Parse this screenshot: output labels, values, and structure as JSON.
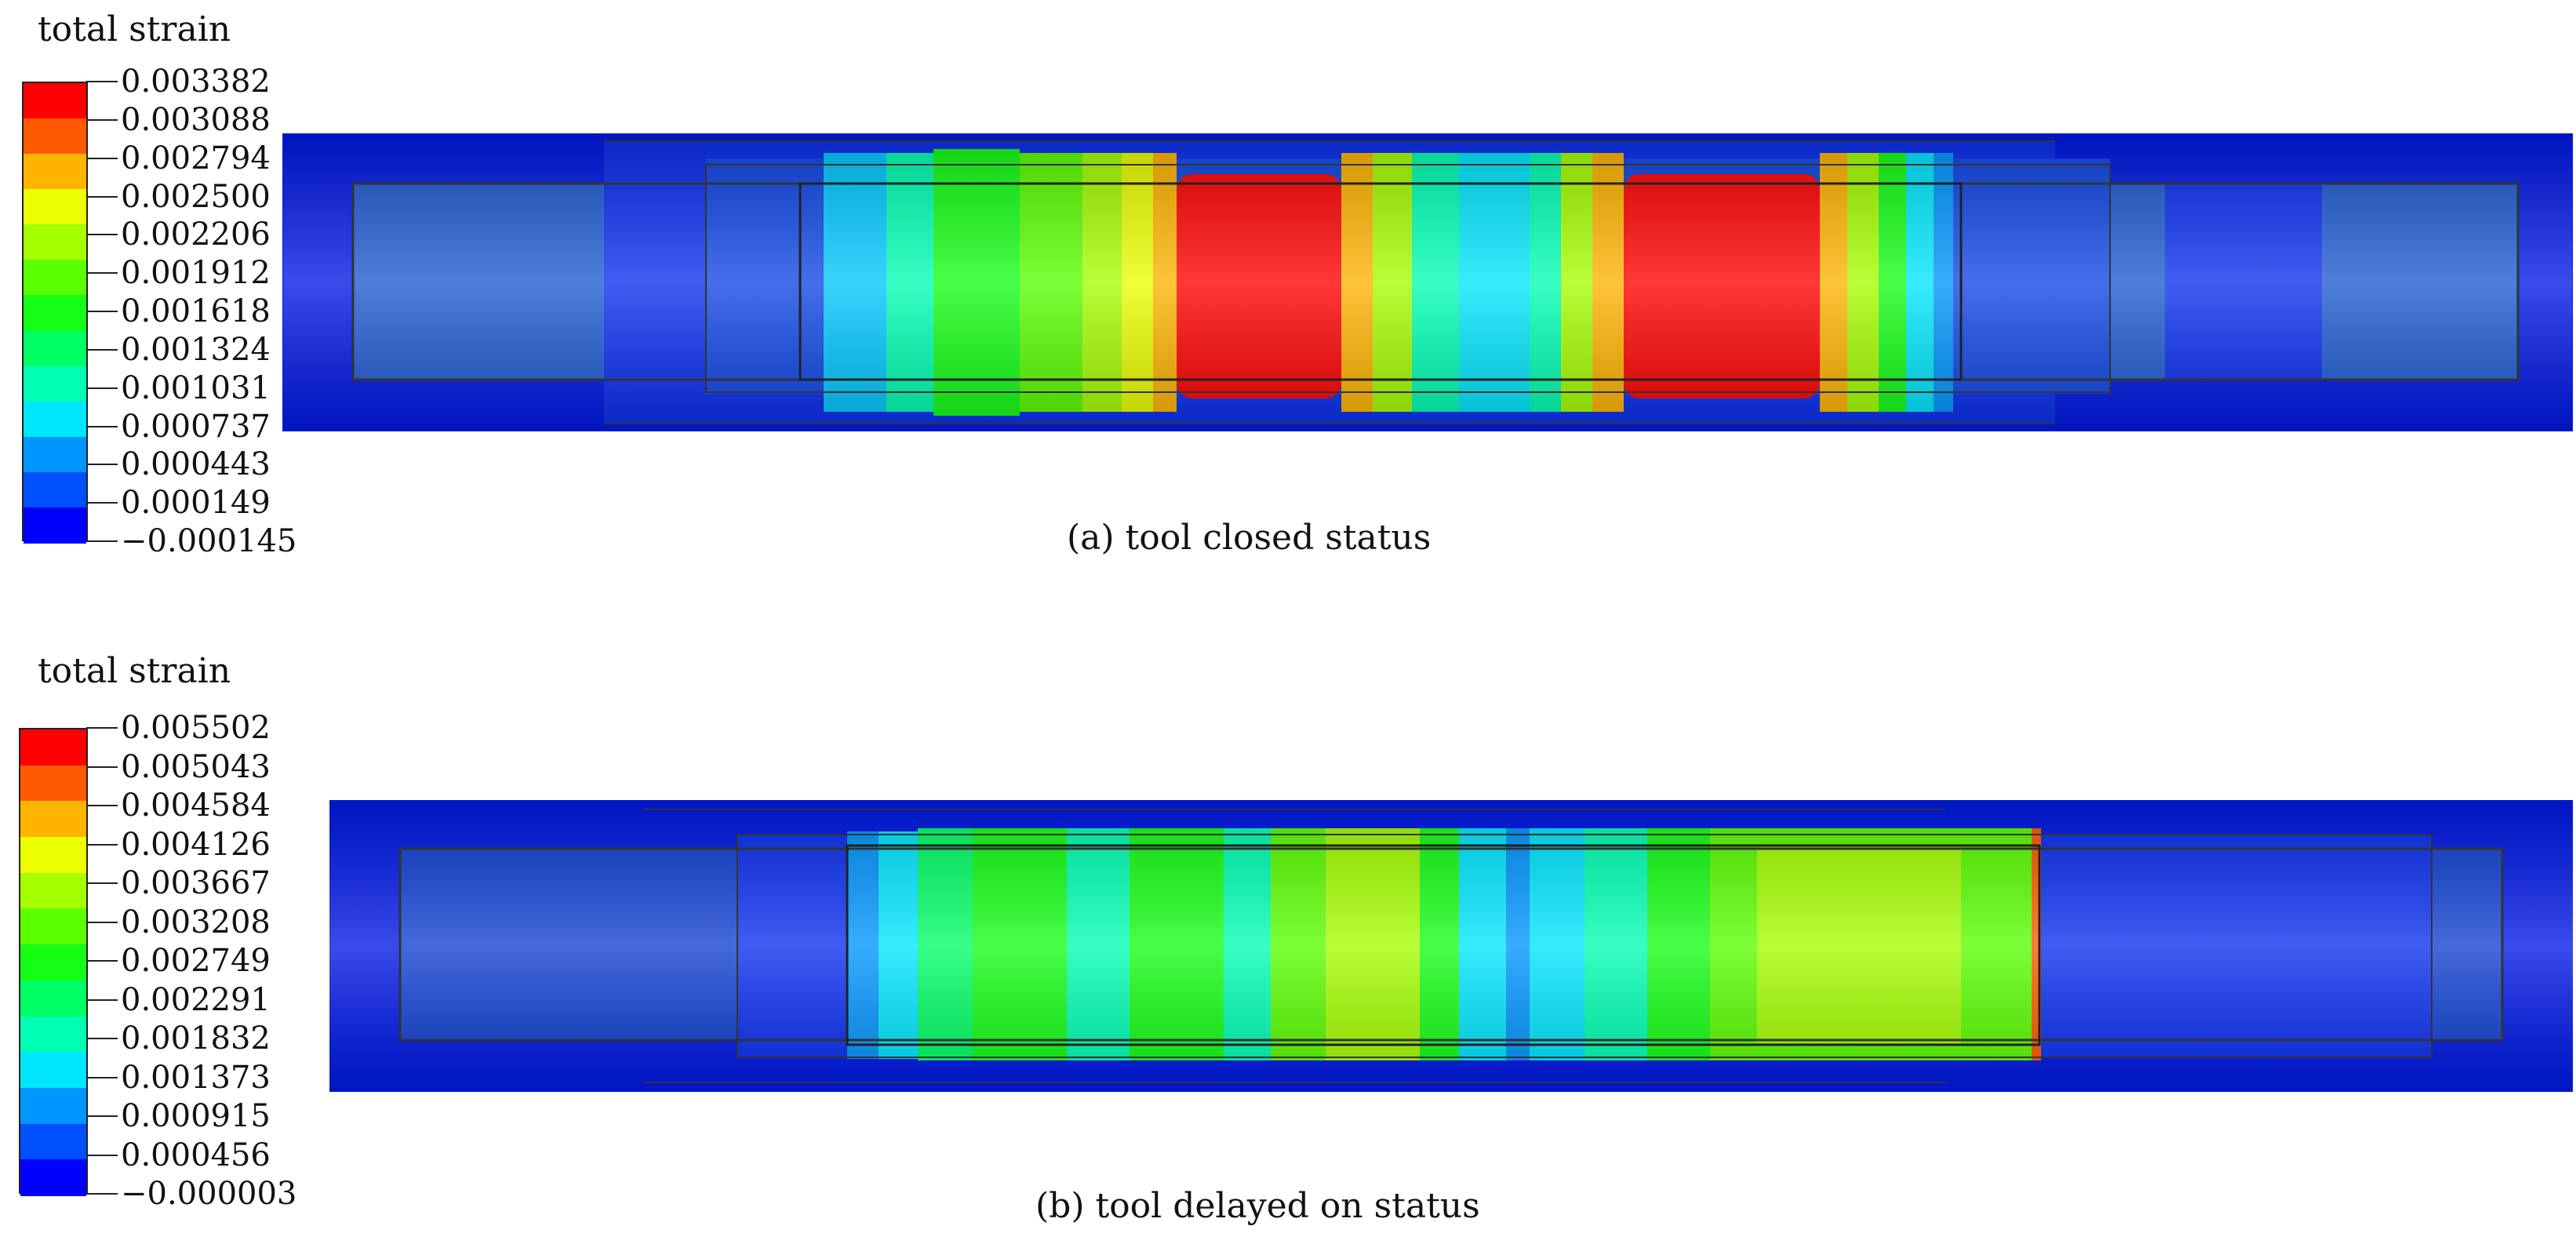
{
  "panels": [
    {
      "legend_title": "total strain",
      "caption": "(a) tool closed status",
      "legend_values": [
        "0.003382",
        "0.003088",
        "0.002794",
        "0.002500",
        "0.002206",
        "0.001912",
        "0.001618",
        "0.001324",
        "0.001031",
        "0.000737",
        "0.000443",
        "0.000149",
        "−0.000145"
      ],
      "legend_colors": [
        "#ff0000",
        "#ff5a00",
        "#ffb400",
        "#ebff00",
        "#a5ff00",
        "#5aff00",
        "#14ff14",
        "#00ff64",
        "#00ffb4",
        "#00e6ff",
        "#0096ff",
        "#0050ff",
        "#0000ff"
      ]
    },
    {
      "legend_title": "total strain",
      "caption": "(b) tool delayed on status",
      "legend_values": [
        "0.005502",
        "0.005043",
        "0.004584",
        "0.004126",
        "0.003667",
        "0.003208",
        "0.002749",
        "0.002291",
        "0.001832",
        "0.001373",
        "0.000915",
        "0.000456",
        "−0.000003"
      ],
      "legend_colors": [
        "#ff0000",
        "#ff5a00",
        "#ffb400",
        "#ebff00",
        "#a5ff00",
        "#5aff00",
        "#14ff14",
        "#00ff64",
        "#00ffb4",
        "#00e6ff",
        "#0096ff",
        "#0050ff",
        "#0000ff"
      ]
    }
  ]
}
